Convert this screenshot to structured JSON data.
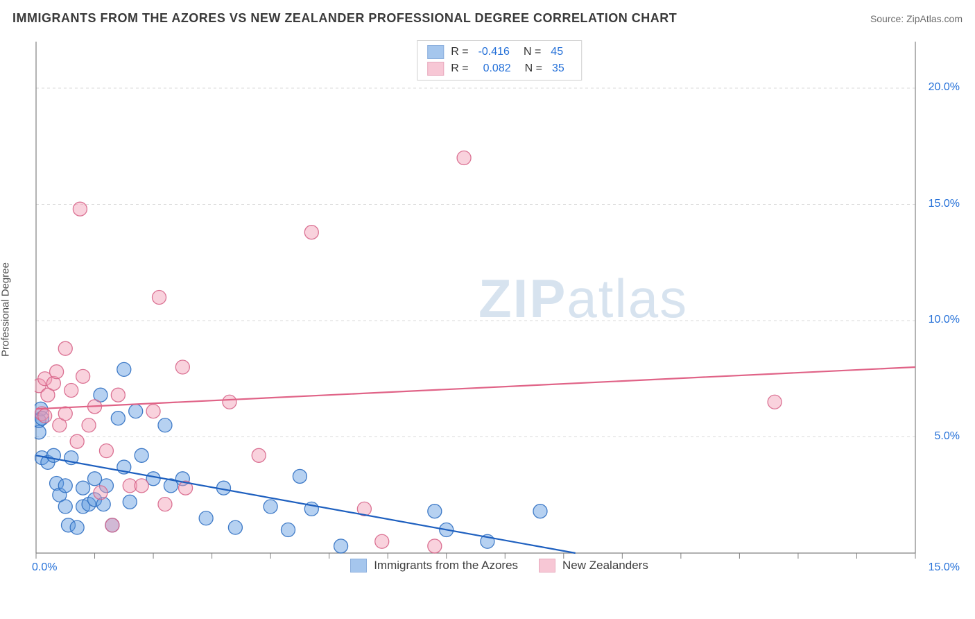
{
  "header": {
    "title": "IMMIGRANTS FROM THE AZORES VS NEW ZEALANDER PROFESSIONAL DEGREE CORRELATION CHART",
    "source": "Source: ZipAtlas.com"
  },
  "ylabel": "Professional Degree",
  "watermark": {
    "bold": "ZIP",
    "rest": "atlas"
  },
  "chart": {
    "type": "scatter",
    "background_color": "#ffffff",
    "grid_color": "#d9d9d9",
    "axis_line_color": "#808080",
    "tick_color": "#808080",
    "xlim": [
      0,
      15
    ],
    "ylim": [
      0,
      22
    ],
    "x_ticks": [
      0,
      1,
      2,
      3,
      4,
      5,
      6,
      7,
      8,
      9,
      10,
      11,
      12,
      13,
      14,
      15
    ],
    "x_tick_labels": {
      "0": "0.0%",
      "15": "15.0%"
    },
    "y_gridlines": [
      5,
      10,
      15,
      20
    ],
    "y_tick_labels": {
      "5": "5.0%",
      "10": "10.0%",
      "15": "15.0%",
      "20": "20.0%"
    },
    "label_color": "#2470d8",
    "label_fontsize": 16,
    "marker_radius": 10,
    "marker_opacity": 0.45,
    "line_width": 2.2,
    "series": [
      {
        "name": "Immigrants from the Azores",
        "fill": "#5d99e0",
        "stroke": "#2f6fc2",
        "line_color": "#1d5fbf",
        "R": "-0.416",
        "N": "45",
        "trend": {
          "x1": 0,
          "y1": 4.2,
          "x2": 9.2,
          "y2": 0
        },
        "points": [
          [
            0.05,
            5.2
          ],
          [
            0.05,
            5.7
          ],
          [
            0.08,
            6.2
          ],
          [
            0.1,
            5.8
          ],
          [
            0.1,
            4.1
          ],
          [
            0.2,
            3.9
          ],
          [
            0.3,
            4.2
          ],
          [
            0.35,
            3.0
          ],
          [
            0.4,
            2.5
          ],
          [
            0.5,
            2.0
          ],
          [
            0.5,
            2.9
          ],
          [
            0.55,
            1.2
          ],
          [
            0.6,
            4.1
          ],
          [
            0.7,
            1.1
          ],
          [
            0.8,
            2.0
          ],
          [
            0.8,
            2.8
          ],
          [
            0.9,
            2.1
          ],
          [
            1.0,
            3.2
          ],
          [
            1.0,
            2.3
          ],
          [
            1.1,
            6.8
          ],
          [
            1.15,
            2.1
          ],
          [
            1.2,
            2.9
          ],
          [
            1.3,
            1.2
          ],
          [
            1.4,
            5.8
          ],
          [
            1.5,
            7.9
          ],
          [
            1.5,
            3.7
          ],
          [
            1.6,
            2.2
          ],
          [
            1.7,
            6.1
          ],
          [
            1.8,
            4.2
          ],
          [
            2.0,
            3.2
          ],
          [
            2.2,
            5.5
          ],
          [
            2.3,
            2.9
          ],
          [
            2.5,
            3.2
          ],
          [
            2.9,
            1.5
          ],
          [
            3.2,
            2.8
          ],
          [
            3.4,
            1.1
          ],
          [
            4.0,
            2.0
          ],
          [
            4.3,
            1.0
          ],
          [
            4.5,
            3.3
          ],
          [
            4.7,
            1.9
          ],
          [
            5.2,
            0.3
          ],
          [
            6.8,
            1.8
          ],
          [
            7.0,
            1.0
          ],
          [
            7.7,
            0.5
          ],
          [
            8.6,
            1.8
          ]
        ]
      },
      {
        "name": "New Zealanders",
        "fill": "#f29bb4",
        "stroke": "#d76589",
        "line_color": "#e06387",
        "R": "0.082",
        "N": "35",
        "trend": {
          "x1": 0,
          "y1": 6.2,
          "x2": 15,
          "y2": 8.0
        },
        "points": [
          [
            0.05,
            7.2
          ],
          [
            0.1,
            6.0
          ],
          [
            0.15,
            7.5
          ],
          [
            0.2,
            6.8
          ],
          [
            0.3,
            7.3
          ],
          [
            0.35,
            7.8
          ],
          [
            0.4,
            5.5
          ],
          [
            0.5,
            6.0
          ],
          [
            0.5,
            8.8
          ],
          [
            0.6,
            7.0
          ],
          [
            0.7,
            4.8
          ],
          [
            0.75,
            14.8
          ],
          [
            0.8,
            7.6
          ],
          [
            0.9,
            5.5
          ],
          [
            1.0,
            6.3
          ],
          [
            1.1,
            2.6
          ],
          [
            1.2,
            4.4
          ],
          [
            1.3,
            1.2
          ],
          [
            1.4,
            6.8
          ],
          [
            1.6,
            2.9
          ],
          [
            1.8,
            2.9
          ],
          [
            2.0,
            6.1
          ],
          [
            2.1,
            11.0
          ],
          [
            2.2,
            2.1
          ],
          [
            2.5,
            8.0
          ],
          [
            2.55,
            2.8
          ],
          [
            3.3,
            6.5
          ],
          [
            3.8,
            4.2
          ],
          [
            4.7,
            13.8
          ],
          [
            5.6,
            1.9
          ],
          [
            5.9,
            0.5
          ],
          [
            6.8,
            0.3
          ],
          [
            7.3,
            17.0
          ],
          [
            12.6,
            6.5
          ],
          [
            0.15,
            5.9
          ]
        ]
      }
    ]
  }
}
